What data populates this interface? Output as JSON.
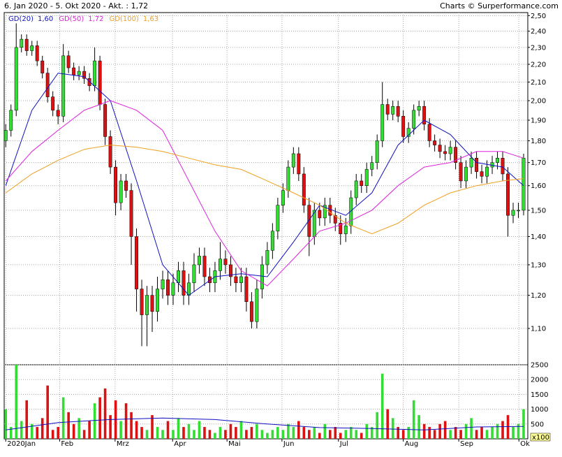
{
  "chart_data": [
    {
      "type": "candlestick",
      "title": "6. Jan 2020 - 5. Okt 2020 - Akt. : 1,72",
      "source": "Charts © Surperformance.com",
      "log_scale": true,
      "grid": true,
      "up_color": "#33dd33",
      "down_color": "#dd1111",
      "xlim": [
        -0.3,
        99.8
      ],
      "ylim": [
        1.0,
        2.52
      ],
      "yticks": [
        {
          "value": 1.1,
          "label": "1,10"
        },
        {
          "value": 1.2,
          "label": "1,20"
        },
        {
          "value": 1.3,
          "label": "1,30"
        },
        {
          "value": 1.4,
          "label": "1,40"
        },
        {
          "value": 1.5,
          "label": "1,50"
        },
        {
          "value": 1.6,
          "label": "1,60"
        },
        {
          "value": 1.7,
          "label": "1,70"
        },
        {
          "value": 1.8,
          "label": "1,80"
        },
        {
          "value": 1.9,
          "label": "1,90"
        },
        {
          "value": 2.0,
          "label": "2,00"
        },
        {
          "value": 2.1,
          "label": "2,10"
        },
        {
          "value": 2.2,
          "label": "2,20"
        },
        {
          "value": 2.3,
          "label": "2,30"
        },
        {
          "value": 2.4,
          "label": "2,40"
        },
        {
          "value": 2.5,
          "label": "2,50"
        }
      ],
      "candles": {
        "open": [
          1.8,
          1.85,
          1.95,
          2.3,
          2.35,
          2.28,
          2.31,
          2.22,
          2.15,
          2.02,
          1.95,
          1.92,
          2.25,
          2.18,
          2.14,
          2.16,
          2.12,
          2.08,
          2.22,
          1.98,
          1.82,
          1.68,
          1.53,
          1.62,
          1.58,
          1.4,
          1.22,
          1.14,
          1.2,
          1.15,
          1.22,
          1.25,
          1.2,
          1.24,
          1.28,
          1.2,
          1.24,
          1.3,
          1.33,
          1.26,
          1.24,
          1.28,
          1.32,
          1.3,
          1.26,
          1.24,
          1.26,
          1.18,
          1.12,
          1.22,
          1.3,
          1.35,
          1.42,
          1.52,
          1.58,
          1.68,
          1.74,
          1.65,
          1.52,
          1.4,
          1.5,
          1.47,
          1.52,
          1.48,
          1.45,
          1.41,
          1.44,
          1.55,
          1.62,
          1.6,
          1.67,
          1.7,
          1.8,
          1.98,
          1.93,
          1.97,
          1.92,
          1.82,
          1.86,
          1.95,
          1.97,
          1.88,
          1.8,
          1.78,
          1.75,
          1.74,
          1.77,
          1.7,
          1.62,
          1.68,
          1.72,
          1.66,
          1.64,
          1.68,
          1.7,
          1.72,
          1.65,
          1.48,
          1.5,
          1.5
        ],
        "high": [
          1.88,
          1.98,
          2.45,
          2.38,
          2.38,
          2.34,
          2.34,
          2.25,
          2.18,
          2.05,
          1.98,
          2.32,
          2.28,
          2.21,
          2.19,
          2.19,
          2.15,
          2.3,
          2.25,
          2.01,
          1.85,
          1.71,
          1.65,
          1.65,
          1.61,
          1.43,
          1.25,
          1.23,
          1.23,
          1.26,
          1.28,
          1.28,
          1.27,
          1.31,
          1.31,
          1.27,
          1.34,
          1.36,
          1.36,
          1.29,
          1.31,
          1.38,
          1.35,
          1.33,
          1.29,
          1.29,
          1.29,
          1.21,
          1.25,
          1.33,
          1.38,
          1.45,
          1.55,
          1.61,
          1.71,
          1.77,
          1.77,
          1.68,
          1.55,
          1.53,
          1.53,
          1.55,
          1.55,
          1.51,
          1.48,
          1.47,
          1.58,
          1.65,
          1.65,
          1.7,
          1.73,
          1.83,
          2.1,
          2.01,
          2.0,
          2.0,
          1.95,
          1.89,
          1.98,
          2.0,
          2.0,
          1.91,
          1.83,
          1.81,
          1.78,
          1.8,
          1.8,
          1.73,
          1.71,
          1.75,
          1.75,
          1.69,
          1.71,
          1.73,
          1.75,
          1.75,
          1.68,
          1.53,
          1.53,
          1.74
        ],
        "low": [
          1.77,
          1.82,
          1.92,
          2.27,
          2.25,
          2.25,
          2.19,
          2.12,
          1.99,
          1.92,
          1.88,
          1.89,
          2.15,
          2.11,
          2.11,
          2.09,
          2.05,
          2.05,
          1.95,
          1.78,
          1.65,
          1.48,
          1.5,
          1.55,
          1.3,
          1.15,
          1.05,
          1.05,
          1.09,
          1.12,
          1.19,
          1.17,
          1.17,
          1.21,
          1.17,
          1.17,
          1.21,
          1.27,
          1.23,
          1.21,
          1.21,
          1.25,
          1.27,
          1.23,
          1.21,
          1.21,
          1.15,
          1.1,
          1.1,
          1.19,
          1.27,
          1.32,
          1.39,
          1.49,
          1.55,
          1.65,
          1.62,
          1.49,
          1.33,
          1.37,
          1.44,
          1.44,
          1.45,
          1.42,
          1.37,
          1.38,
          1.41,
          1.52,
          1.57,
          1.57,
          1.64,
          1.67,
          1.77,
          1.9,
          1.9,
          1.89,
          1.79,
          1.79,
          1.83,
          1.92,
          1.85,
          1.77,
          1.75,
          1.72,
          1.71,
          1.71,
          1.67,
          1.59,
          1.59,
          1.65,
          1.63,
          1.61,
          1.61,
          1.65,
          1.67,
          1.62,
          1.4,
          1.45,
          1.47,
          1.48
        ],
        "close": [
          1.85,
          1.95,
          2.3,
          2.35,
          2.28,
          2.31,
          2.22,
          2.15,
          2.02,
          1.95,
          1.92,
          2.25,
          2.18,
          2.14,
          2.16,
          2.12,
          2.08,
          2.22,
          1.98,
          1.82,
          1.68,
          1.53,
          1.62,
          1.58,
          1.4,
          1.22,
          1.14,
          1.2,
          1.15,
          1.22,
          1.25,
          1.2,
          1.24,
          1.28,
          1.2,
          1.24,
          1.3,
          1.33,
          1.26,
          1.24,
          1.28,
          1.32,
          1.3,
          1.26,
          1.24,
          1.26,
          1.18,
          1.12,
          1.22,
          1.3,
          1.35,
          1.42,
          1.52,
          1.58,
          1.68,
          1.74,
          1.65,
          1.52,
          1.4,
          1.5,
          1.47,
          1.52,
          1.48,
          1.45,
          1.41,
          1.44,
          1.55,
          1.62,
          1.6,
          1.67,
          1.7,
          1.8,
          1.98,
          1.93,
          1.97,
          1.92,
          1.82,
          1.86,
          1.95,
          1.97,
          1.88,
          1.8,
          1.78,
          1.75,
          1.74,
          1.77,
          1.7,
          1.62,
          1.68,
          1.72,
          1.66,
          1.64,
          1.68,
          1.7,
          1.72,
          1.65,
          1.48,
          1.5,
          1.5,
          1.72
        ]
      },
      "series": [
        {
          "name": "GD(20)",
          "label": "1,60",
          "color": "#1010c0",
          "x": [
            0,
            5,
            10,
            15,
            20,
            25,
            30,
            35,
            40,
            45,
            50,
            55,
            60,
            65,
            70,
            75,
            80,
            85,
            90,
            95,
            99
          ],
          "values": [
            1.6,
            1.95,
            2.15,
            2.13,
            2.0,
            1.62,
            1.3,
            1.2,
            1.26,
            1.27,
            1.26,
            1.38,
            1.52,
            1.48,
            1.57,
            1.78,
            1.9,
            1.83,
            1.7,
            1.68,
            1.6
          ]
        },
        {
          "name": "GD(50)",
          "label": "1,72",
          "color": "#dd22dd",
          "x": [
            0,
            5,
            10,
            15,
            20,
            25,
            30,
            35,
            40,
            45,
            50,
            55,
            60,
            65,
            70,
            75,
            80,
            85,
            90,
            95,
            99
          ],
          "values": [
            1.62,
            1.75,
            1.85,
            1.95,
            2.0,
            1.95,
            1.85,
            1.62,
            1.42,
            1.28,
            1.23,
            1.32,
            1.42,
            1.45,
            1.5,
            1.6,
            1.68,
            1.7,
            1.75,
            1.75,
            1.72
          ]
        },
        {
          "name": "GD(100)",
          "label": "1,63",
          "color": "#f0a020",
          "x": [
            0,
            5,
            10,
            15,
            20,
            25,
            30,
            35,
            40,
            45,
            50,
            55,
            60,
            65,
            70,
            75,
            80,
            85,
            90,
            95,
            99
          ],
          "values": [
            1.57,
            1.65,
            1.71,
            1.76,
            1.78,
            1.77,
            1.75,
            1.72,
            1.69,
            1.67,
            1.62,
            1.57,
            1.52,
            1.45,
            1.41,
            1.45,
            1.52,
            1.57,
            1.6,
            1.62,
            1.63
          ]
        }
      ]
    },
    {
      "type": "bar",
      "unit": "x100",
      "grid": true,
      "xlim": [
        -0.3,
        99.8
      ],
      "ylim": [
        0,
        2500
      ],
      "yticks": [
        500,
        1000,
        1500,
        2000,
        2500
      ],
      "xticks": [
        {
          "value": 0,
          "label": "2020Jan"
        },
        {
          "value": 10.3,
          "label": "Feb"
        },
        {
          "value": 20.9,
          "label": "Mrz"
        },
        {
          "value": 31.9,
          "label": "Apr"
        },
        {
          "value": 42.3,
          "label": "Mai"
        },
        {
          "value": 52.8,
          "label": "Jun"
        },
        {
          "value": 63.6,
          "label": "Jul"
        },
        {
          "value": 76,
          "label": "Aug"
        },
        {
          "value": 86.6,
          "label": "Sep"
        },
        {
          "value": 98.1,
          "label": "Ok"
        }
      ],
      "values": [
        1000,
        400,
        2500,
        600,
        1300,
        500,
        400,
        700,
        1800,
        300,
        400,
        1400,
        900,
        500,
        700,
        300,
        600,
        1200,
        1400,
        1700,
        800,
        1300,
        600,
        1200,
        900,
        600,
        400,
        300,
        800,
        400,
        300,
        600,
        300,
        700,
        400,
        500,
        300,
        600,
        400,
        300,
        200,
        400,
        300,
        500,
        400,
        600,
        300,
        400,
        500,
        300,
        200,
        300,
        400,
        300,
        500,
        400,
        600,
        400,
        300,
        400,
        200,
        500,
        300,
        400,
        200,
        300,
        400,
        300,
        200,
        500,
        400,
        900,
        2200,
        1000,
        700,
        400,
        300,
        400,
        1300,
        800,
        500,
        400,
        300,
        500,
        600,
        300,
        400,
        300,
        500,
        700,
        300,
        400,
        300,
        400,
        500,
        600,
        800,
        400,
        500,
        1000
      ],
      "line": {
        "color": "#1010c0",
        "x": [
          0,
          10,
          20,
          30,
          40,
          50,
          60,
          70,
          80,
          90,
          99
        ],
        "values": [
          300,
          550,
          650,
          700,
          650,
          500,
          380,
          350,
          300,
          400,
          420
        ]
      }
    }
  ]
}
